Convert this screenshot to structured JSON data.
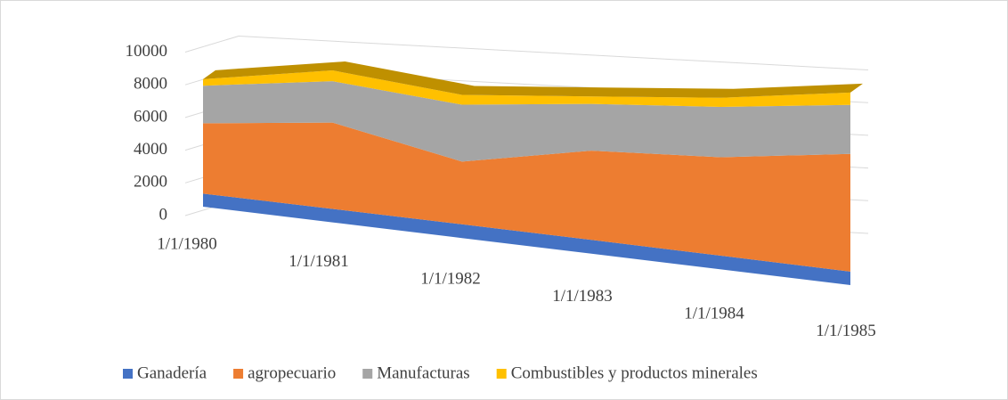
{
  "chart_data": {
    "type": "area3d",
    "categories": [
      "1/1/1980",
      "1/1/1981",
      "1/1/1982",
      "1/1/1983",
      "1/1/1984",
      "1/1/1985"
    ],
    "series": [
      {
        "name": "Ganadería",
        "color": "#4472c4",
        "values": [
          800,
          750,
          700,
          650,
          600,
          550
        ]
      },
      {
        "name": "agropecuario",
        "color": "#ed7d31",
        "values": [
          4300,
          4800,
          3200,
          4200,
          4300,
          4800
        ]
      },
      {
        "name": "Manufacturas",
        "color": "#a5a5a5",
        "values": [
          2300,
          2300,
          2900,
          2200,
          2200,
          2000
        ]
      },
      {
        "name": "Combustibles y productos minerales",
        "color": "#ffc000",
        "values": [
          400,
          600,
          500,
          350,
          400,
          500
        ]
      }
    ],
    "ylim": [
      0,
      10000
    ],
    "yticks": [
      0,
      2000,
      4000,
      6000,
      8000,
      10000
    ],
    "grid": true,
    "stacked": true,
    "legend": "bottom"
  }
}
